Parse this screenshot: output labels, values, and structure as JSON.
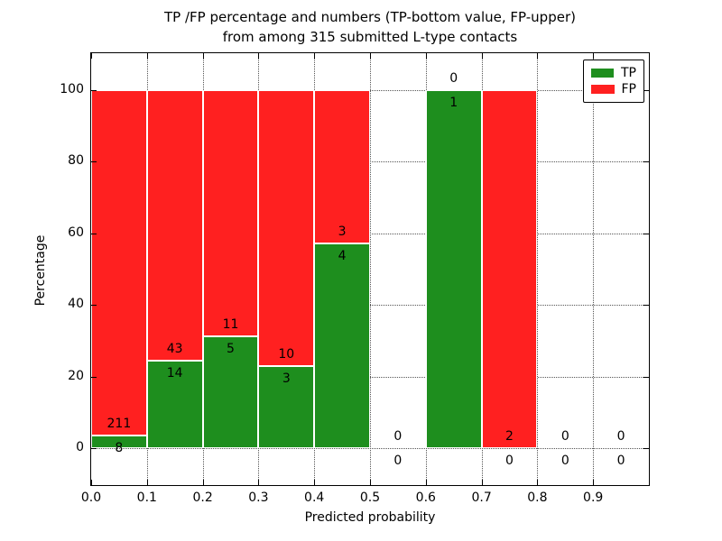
{
  "title": {
    "line1": "TP /FP percentage and numbers (TP-bottom value, FP-upper)",
    "line2": "from among 315 submitted L-type contacts"
  },
  "chart_data": {
    "type": "bar",
    "variant": "stacked-percentage-histogram",
    "title": "TP /FP percentage and numbers (TP-bottom value, FP-upper)\nfrom among 315 submitted L-type contacts",
    "xlabel": "Predicted probability",
    "ylabel": "Percentage",
    "xlim": [
      0.0,
      1.0
    ],
    "ylim": [
      -10.2,
      110.3
    ],
    "grid": true,
    "legend_position": "upper right",
    "x_ticks": [
      0.0,
      0.1,
      0.2,
      0.3,
      0.4,
      0.5,
      0.6,
      0.7,
      0.8,
      0.9
    ],
    "x_tick_labels": [
      "0.0",
      "0.1",
      "0.2",
      "0.3",
      "0.4",
      "0.5",
      "0.6",
      "0.7",
      "0.8",
      "0.9"
    ],
    "y_ticks": [
      0,
      20,
      40,
      60,
      80,
      100
    ],
    "y_tick_labels": [
      "0",
      "20",
      "40",
      "60",
      "80",
      "100"
    ],
    "series": [
      {
        "name": "TP",
        "color": "#1e8e1e",
        "counts": [
          8,
          14,
          5,
          3,
          4,
          0,
          1,
          0,
          0,
          0
        ]
      },
      {
        "name": "FP",
        "color": "#ff2020",
        "counts": [
          211,
          43,
          11,
          10,
          3,
          0,
          0,
          2,
          0,
          0
        ]
      }
    ],
    "bins": [
      {
        "start": 0.0,
        "end": 0.1,
        "tp": 8,
        "fp": 211,
        "tp_pct": 3.65
      },
      {
        "start": 0.1,
        "end": 0.2,
        "tp": 14,
        "fp": 43,
        "tp_pct": 24.56
      },
      {
        "start": 0.2,
        "end": 0.3,
        "tp": 5,
        "fp": 11,
        "tp_pct": 31.25
      },
      {
        "start": 0.3,
        "end": 0.4,
        "tp": 3,
        "fp": 10,
        "tp_pct": 23.08
      },
      {
        "start": 0.4,
        "end": 0.5,
        "tp": 4,
        "fp": 3,
        "tp_pct": 57.14
      },
      {
        "start": 0.5,
        "end": 0.6,
        "tp": 0,
        "fp": 0,
        "tp_pct": null
      },
      {
        "start": 0.6,
        "end": 0.7,
        "tp": 1,
        "fp": 0,
        "tp_pct": 100.0
      },
      {
        "start": 0.7,
        "end": 0.8,
        "tp": 0,
        "fp": 2,
        "tp_pct": 0.0
      },
      {
        "start": 0.8,
        "end": 0.9,
        "tp": 0,
        "fp": 0,
        "tp_pct": null
      },
      {
        "start": 0.9,
        "end": 1.0,
        "tp": 0,
        "fp": 0,
        "tp_pct": null
      }
    ]
  }
}
